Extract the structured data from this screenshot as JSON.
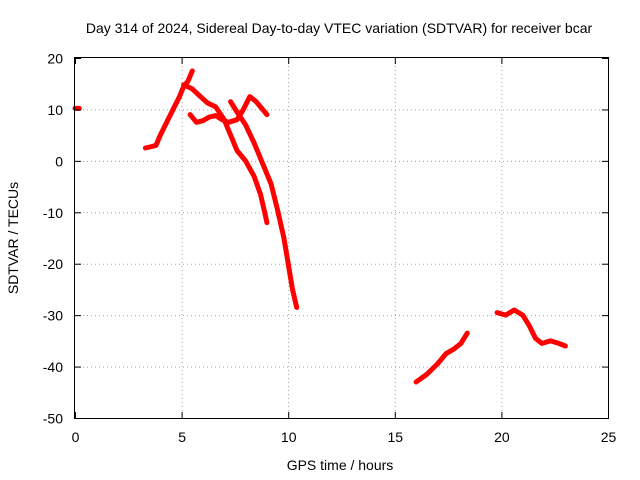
{
  "chart_data": {
    "type": "line",
    "title": "Day 314 of 2024, Sidereal Day-to-day VTEC variation (SDTVAR) for receiver bcar",
    "xlabel": "GPS time / hours",
    "ylabel": "SDTVAR / TECUs",
    "xlim": [
      0,
      25
    ],
    "ylim": [
      -50,
      20
    ],
    "xticks": [
      0,
      5,
      10,
      15,
      20,
      25
    ],
    "yticks": [
      -50,
      -40,
      -30,
      -20,
      -10,
      0,
      10,
      20
    ],
    "xtick_labels": [
      "0",
      "5",
      "10",
      "15",
      "20",
      "25"
    ],
    "ytick_labels": [
      "-50",
      "-40",
      "-30",
      "-20",
      "-10",
      "0",
      "10",
      "20"
    ],
    "grid": true,
    "series_color": "#ff0000",
    "series": [
      {
        "name": "arc-1",
        "points": [
          [
            0.0,
            10.2
          ],
          [
            0.2,
            10.2
          ]
        ]
      },
      {
        "name": "arc-2",
        "points": [
          [
            3.3,
            2.5
          ],
          [
            3.6,
            2.8
          ],
          [
            3.8,
            3.0
          ],
          [
            4.0,
            5.0
          ],
          [
            4.3,
            7.5
          ],
          [
            4.6,
            10.0
          ],
          [
            4.9,
            12.5
          ],
          [
            5.1,
            14.5
          ],
          [
            5.3,
            15.5
          ],
          [
            5.5,
            17.5
          ]
        ]
      },
      {
        "name": "arc-3",
        "points": [
          [
            5.1,
            14.8
          ],
          [
            5.5,
            14.0
          ],
          [
            5.8,
            12.8
          ],
          [
            6.2,
            11.3
          ],
          [
            6.6,
            10.5
          ],
          [
            7.0,
            8.0
          ],
          [
            7.3,
            5.0
          ],
          [
            7.6,
            2.0
          ],
          [
            8.0,
            0.0
          ],
          [
            8.4,
            -3.0
          ],
          [
            8.7,
            -6.5
          ],
          [
            8.9,
            -10.0
          ],
          [
            9.0,
            -12.0
          ]
        ]
      },
      {
        "name": "arc-4",
        "points": [
          [
            5.4,
            9.0
          ],
          [
            5.7,
            7.5
          ],
          [
            6.0,
            7.8
          ],
          [
            6.3,
            8.5
          ],
          [
            6.6,
            8.8
          ],
          [
            6.9,
            8.0
          ],
          [
            7.2,
            7.5
          ],
          [
            7.6,
            8.0
          ],
          [
            7.9,
            10.0
          ],
          [
            8.2,
            12.5
          ],
          [
            8.5,
            11.5
          ],
          [
            8.8,
            10.0
          ],
          [
            9.0,
            9.0
          ]
        ]
      },
      {
        "name": "arc-5",
        "points": [
          [
            7.3,
            11.5
          ],
          [
            7.6,
            9.5
          ],
          [
            8.0,
            7.0
          ],
          [
            8.4,
            3.5
          ],
          [
            8.8,
            -0.5
          ],
          [
            9.2,
            -4.5
          ],
          [
            9.5,
            -9.5
          ],
          [
            9.8,
            -15.0
          ],
          [
            10.0,
            -20.0
          ],
          [
            10.2,
            -25.0
          ],
          [
            10.4,
            -28.5
          ]
        ]
      },
      {
        "name": "arc-6",
        "points": [
          [
            16.0,
            -43.0
          ],
          [
            16.5,
            -41.5
          ],
          [
            17.0,
            -39.5
          ],
          [
            17.4,
            -37.5
          ],
          [
            17.8,
            -36.5
          ],
          [
            18.1,
            -35.5
          ],
          [
            18.4,
            -33.5
          ]
        ]
      },
      {
        "name": "arc-7",
        "points": [
          [
            19.8,
            -29.5
          ],
          [
            20.2,
            -30.0
          ],
          [
            20.6,
            -29.0
          ],
          [
            21.0,
            -30.0
          ],
          [
            21.3,
            -32.0
          ],
          [
            21.6,
            -34.5
          ],
          [
            21.9,
            -35.5
          ],
          [
            22.3,
            -35.0
          ],
          [
            22.7,
            -35.5
          ],
          [
            23.0,
            -36.0
          ]
        ]
      }
    ]
  }
}
